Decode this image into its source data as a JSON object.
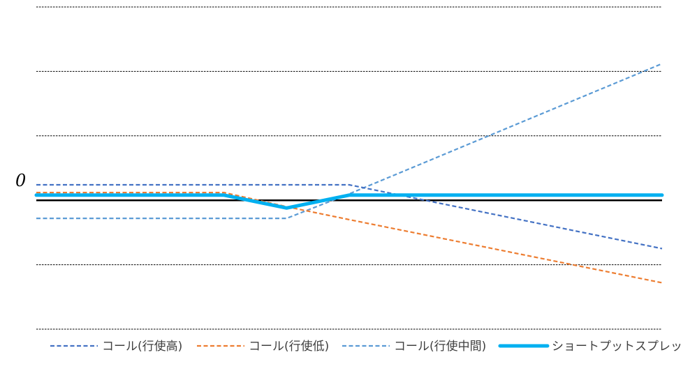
{
  "chart_data": {
    "type": "line",
    "title": "",
    "xlabel": "",
    "ylabel": "",
    "y_tick_labels": [
      "0"
    ],
    "grid": true,
    "legend_position": "bottom",
    "xlim": [
      0,
      100
    ],
    "ylim": [
      -2,
      3
    ],
    "x": [
      0,
      30,
      40,
      50,
      100
    ],
    "series": [
      {
        "name": "コール(行使高)",
        "color": "#4472C4",
        "dash": "dashed",
        "values": [
          0.24,
          0.24,
          0.24,
          0.24,
          -0.75
        ]
      },
      {
        "name": "コール(行使低)",
        "color": "#ED7D31",
        "dash": "dashed",
        "values": [
          0.12,
          0.12,
          -0.1,
          -0.3,
          -1.28
        ]
      },
      {
        "name": "コール(行使中間)",
        "color": "#5B9BD5",
        "dash": "dashed",
        "values": [
          -0.28,
          -0.28,
          -0.28,
          0.1,
          2.12
        ]
      },
      {
        "name": "ショートプットスプレッド",
        "color": "#00B0F0",
        "dash": "solid",
        "values": [
          0.08,
          0.08,
          -0.12,
          0.08,
          0.08
        ]
      }
    ]
  }
}
